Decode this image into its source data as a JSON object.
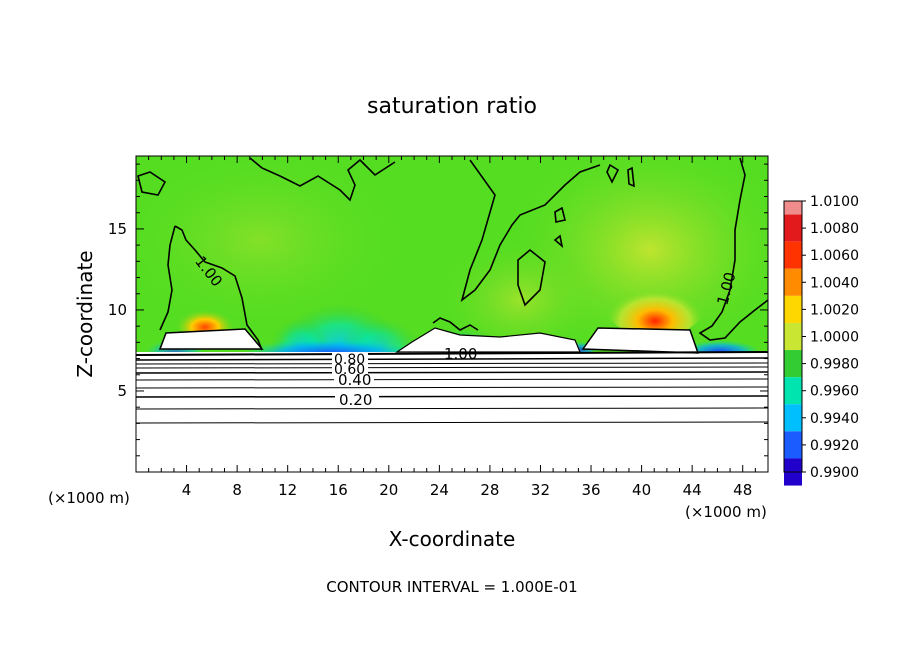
{
  "chart_data": {
    "type": "heatmap",
    "title": "saturation ratio",
    "xlabel": "X-coordinate",
    "ylabel": "Z-coordinate",
    "x_unit_left": "(×1000 m)",
    "x_unit_right": "(×1000 m)",
    "footer": "CONTOUR INTERVAL = 1.000E-01",
    "xlim": [
      0,
      50
    ],
    "ylim": [
      0,
      19.5
    ],
    "x_ticks": [
      4,
      8,
      12,
      16,
      20,
      24,
      28,
      32,
      36,
      40,
      44,
      48
    ],
    "y_ticks": [
      5,
      10,
      15
    ],
    "colorbar": {
      "ticks": [
        "1.0100",
        "1.0080",
        "1.0060",
        "1.0040",
        "1.0020",
        "1.0000",
        "0.9980",
        "0.9960",
        "0.9940",
        "0.9920",
        "0.9900"
      ],
      "colors": [
        "#f08c8c",
        "#e31a1c",
        "#ff3300",
        "#ff8c00",
        "#ffd700",
        "#c8e632",
        "#33cc33",
        "#00e5b0",
        "#00bfff",
        "#1a5cff",
        "#2200cc",
        "#5a1a8c"
      ]
    },
    "contour_labels": [
      "1.00",
      "1.00",
      "1.00",
      "0.80",
      "0.60",
      "0.40",
      "0.20"
    ],
    "contour_levels_below": [
      0.2,
      0.3,
      0.4,
      0.5,
      0.6,
      0.7,
      0.8,
      0.9
    ]
  }
}
